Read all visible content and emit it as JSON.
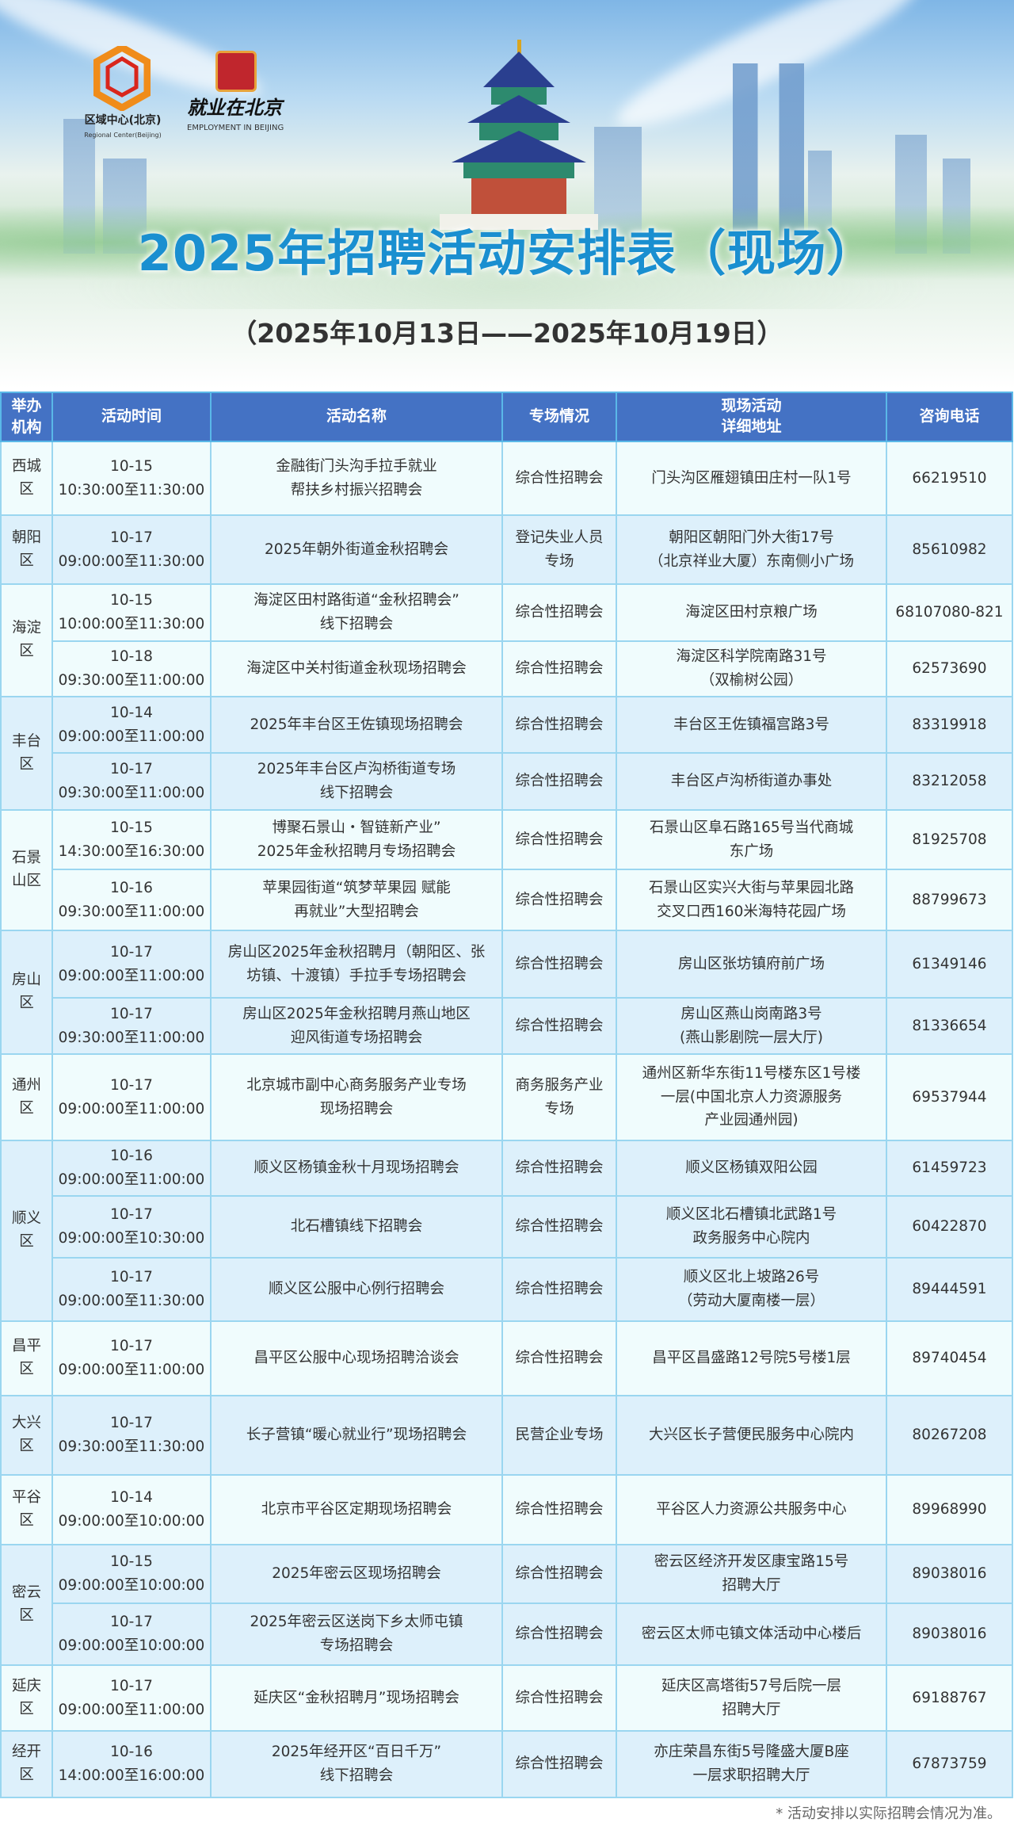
{
  "header": {
    "logo1_text": "区域中心(北京)",
    "logo1_sub": "Regional Center(Beijing)",
    "logo2_text": "就业在北京",
    "logo2_sub": "EMPLOYMENT IN BEIJING",
    "title": "2025年招聘活动安排表（现场）",
    "date_range": "（2025年10月13日——2025年10月19日）"
  },
  "colors": {
    "header_bg": "#4472c4",
    "title": "#1a8fd0",
    "row_a": "#f0fcfd",
    "row_b": "#ddf0fb"
  },
  "table": {
    "columns": [
      "举办机构",
      "活动时间",
      "活动名称",
      "专场情况",
      "现场活动\n详细地址",
      "咨询电话"
    ],
    "groups": [
      {
        "org": "西城区",
        "rows": [
          {
            "date": "10-15",
            "time": "10:30:00至11:30:00",
            "name": "金融街门头沟手拉手就业\n帮扶乡村振兴招聘会",
            "type": "综合性招聘会",
            "address": "门头沟区雁翅镇田庄村一队1号",
            "phone": "66219510"
          }
        ]
      },
      {
        "org": "朝阳区",
        "rows": [
          {
            "date": "10-17",
            "time": "09:00:00至11:30:00",
            "name": "2025年朝外街道金秋招聘会",
            "type": "登记失业人员\n专场",
            "address": "朝阳区朝阳门外大街17号\n（北京祥业大厦）东南侧小广场",
            "phone": "85610982"
          }
        ]
      },
      {
        "org": "海淀区",
        "rows": [
          {
            "date": "10-15",
            "time": "10:00:00至11:30:00",
            "name": "海淀区田村路街道“金秋招聘会”\n线下招聘会",
            "type": "综合性招聘会",
            "address": "海淀区田村京粮广场",
            "phone": "68107080-821"
          },
          {
            "date": "10-18",
            "time": "09:30:00至11:00:00",
            "name": "海淀区中关村街道金秋现场招聘会",
            "type": "综合性招聘会",
            "address": "海淀区科学院南路31号\n（双榆树公园）",
            "phone": "62573690"
          }
        ]
      },
      {
        "org": "丰台区",
        "rows": [
          {
            "date": "10-14",
            "time": "09:00:00至11:00:00",
            "name": "2025年丰台区王佐镇现场招聘会",
            "type": "综合性招聘会",
            "address": "丰台区王佐镇福宫路3号",
            "phone": "83319918"
          },
          {
            "date": "10-17",
            "time": "09:30:00至11:00:00",
            "name": "2025年丰台区卢沟桥街道专场\n线下招聘会",
            "type": "综合性招聘会",
            "address": "丰台区卢沟桥街道办事处",
            "phone": "83212058"
          }
        ]
      },
      {
        "org": "石景山区",
        "rows": [
          {
            "date": "10-15",
            "time": "14:30:00至16:30:00",
            "name": "博聚石景山・智链新产业”\n2025年金秋招聘月专场招聘会",
            "type": "综合性招聘会",
            "address": "石景山区阜石路165号当代商城\n东广场",
            "phone": "81925708"
          },
          {
            "date": "10-16",
            "time": "09:30:00至11:00:00",
            "name": "苹果园街道“筑梦苹果园 赋能\n再就业”大型招聘会",
            "type": "综合性招聘会",
            "address": "石景山区实兴大街与苹果园北路\n交叉口西160米海特花园广场",
            "phone": "88799673"
          }
        ]
      },
      {
        "org": "房山区",
        "rows": [
          {
            "date": "10-17",
            "time": "09:00:00至11:00:00",
            "name": "房山区2025年金秋招聘月（朝阳区、张\n坊镇、十渡镇）手拉手专场招聘会",
            "type": "综合性招聘会",
            "address": "房山区张坊镇府前广场",
            "phone": "61349146"
          },
          {
            "date": "10-17",
            "time": "09:30:00至11:00:00",
            "name": "房山区2025年金秋招聘月燕山地区\n迎风街道专场招聘会",
            "type": "综合性招聘会",
            "address": "房山区燕山岗南路3号\n(燕山影剧院一层大厅)",
            "phone": "81336654"
          }
        ]
      },
      {
        "org": "通州区",
        "rows": [
          {
            "date": "10-17",
            "time": "09:00:00至11:00:00",
            "name": "北京城市副中心商务服务产业专场\n现场招聘会",
            "type": "商务服务产业\n专场",
            "address": "通州区新华东街11号楼东区1号楼\n一层(中国北京人力资源服务\n产业园通州园)",
            "phone": "69537944"
          }
        ]
      },
      {
        "org": "顺义区",
        "rows": [
          {
            "date": "10-16",
            "time": "09:00:00至11:00:00",
            "name": "顺义区杨镇金秋十月现场招聘会",
            "type": "综合性招聘会",
            "address": "顺义区杨镇双阳公园",
            "phone": "61459723"
          },
          {
            "date": "10-17",
            "time": "09:00:00至10:30:00",
            "name": "北石槽镇线下招聘会",
            "type": "综合性招聘会",
            "address": "顺义区北石槽镇北武路1号\n政务服务中心院内",
            "phone": "60422870"
          },
          {
            "date": "10-17",
            "time": "09:00:00至11:30:00",
            "name": "顺义区公服中心例行招聘会",
            "type": "综合性招聘会",
            "address": "顺义区北上坡路26号\n（劳动大厦南楼一层）",
            "phone": "89444591"
          }
        ]
      },
      {
        "org": "昌平区",
        "rows": [
          {
            "date": "10-17",
            "time": "09:00:00至11:00:00",
            "name": "昌平区公服中心现场招聘洽谈会",
            "type": "综合性招聘会",
            "address": "昌平区昌盛路12号院5号楼1层",
            "phone": "89740454"
          }
        ]
      },
      {
        "org": "大兴区",
        "rows": [
          {
            "date": "10-17",
            "time": "09:30:00至11:30:00",
            "name": "长子营镇“暖心就业行”现场招聘会",
            "type": "民营企业专场",
            "address": "大兴区长子营便民服务中心院内",
            "phone": "80267208"
          }
        ]
      },
      {
        "org": "平谷区",
        "rows": [
          {
            "date": "10-14",
            "time": "09:00:00至10:00:00",
            "name": "北京市平谷区定期现场招聘会",
            "type": "综合性招聘会",
            "address": "平谷区人力资源公共服务中心",
            "phone": "89968990"
          }
        ]
      },
      {
        "org": "密云区",
        "rows": [
          {
            "date": "10-15",
            "time": "09:00:00至10:00:00",
            "name": "2025年密云区现场招聘会",
            "type": "综合性招聘会",
            "address": "密云区经济开发区康宝路15号\n招聘大厅",
            "phone": "89038016"
          },
          {
            "date": "10-17",
            "time": "09:00:00至10:00:00",
            "name": "2025年密云区送岗下乡太师屯镇\n专场招聘会",
            "type": "综合性招聘会",
            "address": "密云区太师屯镇文体活动中心楼后",
            "phone": "89038016"
          }
        ]
      },
      {
        "org": "延庆区",
        "rows": [
          {
            "date": "10-17",
            "time": "09:00:00至11:00:00",
            "name": "延庆区“金秋招聘月”现场招聘会",
            "type": "综合性招聘会",
            "address": "延庆区高塔街57号后院一层\n招聘大厅",
            "phone": "69188767"
          }
        ]
      },
      {
        "org": "经开区",
        "rows": [
          {
            "date": "10-16",
            "time": "14:00:00至16:00:00",
            "name": "2025年经开区“百日千万”\n线下招聘会",
            "type": "综合性招聘会",
            "address": "亦庄荣昌东街5号隆盛大厦B座\n一层求职招聘大厅",
            "phone": "67873759"
          }
        ]
      }
    ]
  },
  "footnote": "* 活动安排以实际招聘会情况为准。"
}
